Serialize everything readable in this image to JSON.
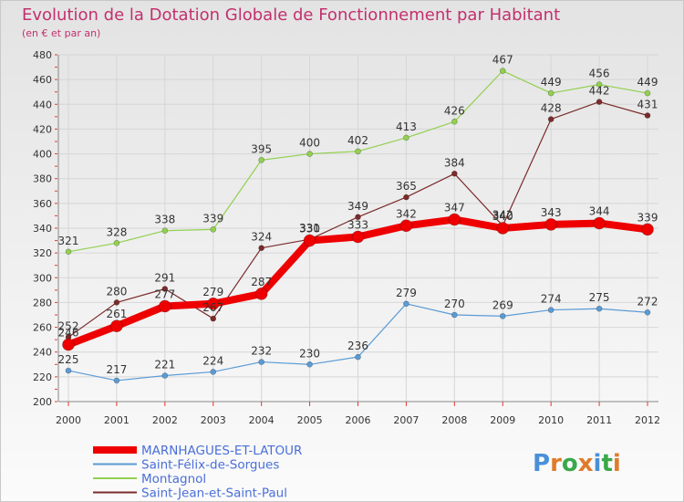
{
  "chart_data": {
    "type": "line",
    "title": "Evolution de la Dotation Globale de Fonctionnement par Habitant",
    "subtitle": "(en € et par an)",
    "xlabel": "",
    "ylabel": "",
    "x": [
      "2000",
      "2001",
      "2002",
      "2003",
      "2004",
      "2005",
      "2006",
      "2007",
      "2008",
      "2009",
      "2010",
      "2011",
      "2012"
    ],
    "ylim": [
      200,
      480
    ],
    "yticks": [
      200,
      220,
      240,
      260,
      280,
      300,
      320,
      340,
      360,
      380,
      400,
      420,
      440,
      460,
      480
    ],
    "grid": true,
    "legend_position": "bottom-left",
    "series": [
      {
        "name": "Saint-Félix-de-Sorgues",
        "color": "#5b9bd5",
        "width": 1.2,
        "point": 6,
        "values": [
          225,
          217,
          221,
          224,
          232,
          230,
          236,
          279,
          270,
          269,
          274,
          275,
          272
        ]
      },
      {
        "name": "Montagnol",
        "color": "#92d050",
        "width": 1.2,
        "point": 6,
        "values": [
          321,
          328,
          338,
          339,
          395,
          400,
          402,
          413,
          426,
          467,
          449,
          456,
          449
        ]
      },
      {
        "name": "Saint-Jean-et-Saint-Paul",
        "color": "#7b2b2b",
        "width": 1.2,
        "point": 6,
        "values": [
          252,
          280,
          291,
          267,
          324,
          331,
          349,
          365,
          384,
          342,
          428,
          442,
          431
        ]
      },
      {
        "name": "MARNHAGUES-ET-LATOUR",
        "color": "#ee0000",
        "width": 8,
        "point": 13,
        "values": [
          246,
          261,
          277,
          279,
          287,
          330,
          333,
          342,
          347,
          340,
          343,
          344,
          339
        ]
      }
    ],
    "legend_order": [
      3,
      0,
      1,
      2
    ],
    "logo_text": "Proxiti"
  }
}
